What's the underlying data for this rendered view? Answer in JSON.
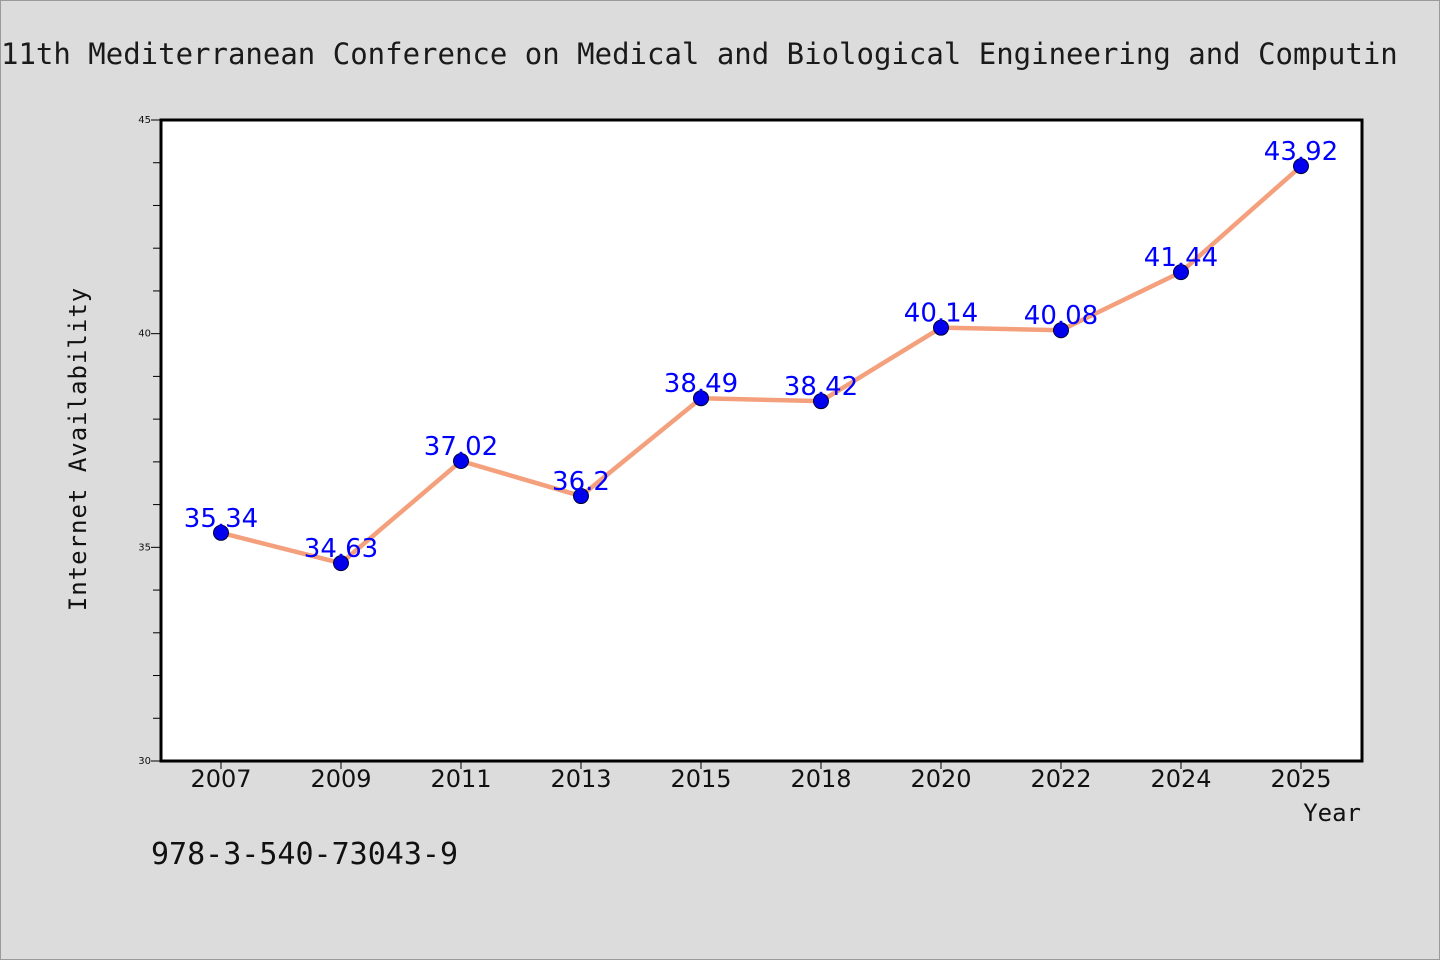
{
  "chart_data": {
    "type": "line",
    "title": "11th Mediterranean Conference on Medical and Biological Engineering and Computin",
    "xlabel": "Year",
    "ylabel": "Internet Availability",
    "categories": [
      "2007",
      "2009",
      "2011",
      "2013",
      "2015",
      "2018",
      "2020",
      "2022",
      "2024",
      "2025"
    ],
    "series": [
      {
        "values": [
          35.34,
          34.63,
          37.02,
          36.2,
          38.49,
          38.42,
          40.14,
          40.08,
          41.44,
          43.92
        ],
        "labels": [
          "35.34",
          "34.63",
          "37.02",
          "36.2",
          "38.49",
          "38.42",
          "40.14",
          "40.08",
          "41.44",
          "43.92"
        ]
      }
    ],
    "ylim": [
      30,
      45
    ],
    "yticks": [
      "30",
      "35",
      "40",
      "45"
    ],
    "grid": false,
    "line_color": "#f4a07c",
    "marker_color": "#0000ee",
    "label_color": "#0000ff"
  },
  "note": "978-3-540-73043-9"
}
